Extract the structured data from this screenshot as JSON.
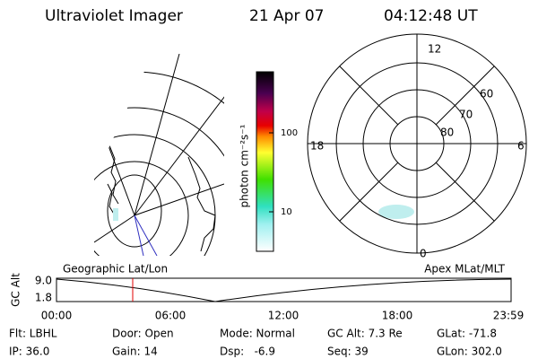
{
  "header": {
    "title": "Ultraviolet Imager",
    "date": "21 Apr 07",
    "time": "04:12:48 UT"
  },
  "colorbar": {
    "label": "photon cm⁻²s⁻¹",
    "ticks": [
      "100",
      "10"
    ]
  },
  "polar": {
    "mlt_labels": [
      "12",
      "6",
      "0",
      "18"
    ],
    "lat_labels": [
      "60",
      "70",
      "80"
    ]
  },
  "timeline": {
    "left_label": "Geographic Lat/Lon",
    "right_label": "Apex MLat/MLT",
    "axis_label": "GC Alt",
    "yticks": [
      "9.0",
      "1.8"
    ],
    "xticks": [
      "00:00",
      "06:00",
      "12:00",
      "18:00",
      "23:59"
    ]
  },
  "info": {
    "rows": [
      [
        "Flt: LBHL",
        "Door: Open",
        "Mode: Normal",
        "GC Alt: 7.3 Re",
        "GLat: -71.8"
      ],
      [
        "IP: 36.0",
        "Gain: 14",
        "Dsp:   -6.9",
        "Seq: 39",
        "GLon: 302.0"
      ]
    ]
  }
}
